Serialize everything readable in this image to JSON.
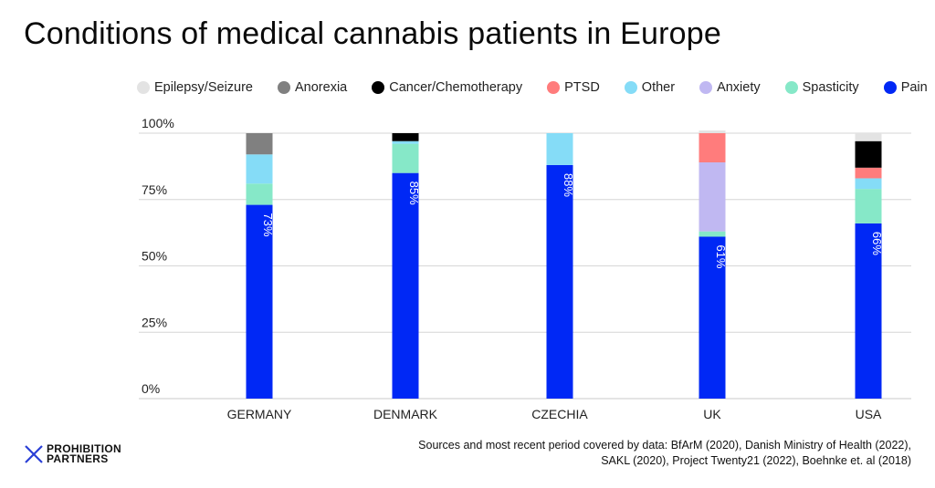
{
  "title": "Conditions of medical cannabis patients in Europe",
  "legend": [
    {
      "key": "epilepsy",
      "label": "Epilepsy/Seizure",
      "color": "#e3e3e3"
    },
    {
      "key": "anorexia",
      "label": "Anorexia",
      "color": "#808080"
    },
    {
      "key": "cancer",
      "label": "Cancer/Chemotherapy",
      "color": "#000000"
    },
    {
      "key": "ptsd",
      "label": "PTSD",
      "color": "#ff7c7c"
    },
    {
      "key": "other",
      "label": "Other",
      "color": "#85dcf7"
    },
    {
      "key": "anxiety",
      "label": "Anxiety",
      "color": "#c0b8f2"
    },
    {
      "key": "spasticity",
      "label": "Spasticity",
      "color": "#86e8c8"
    },
    {
      "key": "pain",
      "label": "Pain",
      "color": "#0028f5"
    }
  ],
  "chart_data": {
    "type": "bar",
    "stacked": true,
    "title": "Conditions of medical cannabis patients in Europe",
    "xlabel": "",
    "ylabel": "",
    "ylim": [
      0,
      100
    ],
    "yticks": [
      "0%",
      "25%",
      "50%",
      "75%",
      "100%"
    ],
    "ytick_values": [
      0,
      25,
      50,
      75,
      100
    ],
    "grid": true,
    "legend_position": "top",
    "categories": [
      "GERMANY",
      "DENMARK",
      "CZECHIA",
      "UK",
      "USA"
    ],
    "stack_order": [
      "pain",
      "spasticity",
      "anxiety",
      "other",
      "ptsd",
      "cancer",
      "anorexia",
      "epilepsy"
    ],
    "series": [
      {
        "key": "pain",
        "name": "Pain",
        "values": [
          73,
          85,
          88,
          61,
          66
        ]
      },
      {
        "key": "spasticity",
        "name": "Spasticity",
        "values": [
          8,
          11,
          0,
          2,
          13
        ]
      },
      {
        "key": "anxiety",
        "name": "Anxiety",
        "values": [
          0,
          0,
          0,
          26,
          0
        ]
      },
      {
        "key": "other",
        "name": "Other",
        "values": [
          11,
          1,
          12,
          0,
          4
        ]
      },
      {
        "key": "ptsd",
        "name": "PTSD",
        "values": [
          0,
          0,
          0,
          11,
          4
        ]
      },
      {
        "key": "cancer",
        "name": "Cancer/Chemotherapy",
        "values": [
          0,
          3,
          0,
          0,
          10
        ]
      },
      {
        "key": "anorexia",
        "name": "Anorexia",
        "values": [
          8,
          0,
          0,
          0,
          0
        ]
      },
      {
        "key": "epilepsy",
        "name": "Epilepsy/Seizure",
        "values": [
          0,
          0,
          0,
          1,
          3
        ]
      }
    ],
    "data_labels": [
      "73%",
      "85%",
      "88%",
      "61%",
      "66%"
    ]
  },
  "logo": {
    "line1": "PROHIBITION",
    "line2": "PARTNERS",
    "mark_color": "#2a3fd6"
  },
  "sources": {
    "line1": "Sources and most recent period covered by data: BfArM (2020), Danish Ministry of Health (2022),",
    "line2": "SAKL (2020), Project Twenty21 (2022), Boehnke et. al (2018)"
  }
}
